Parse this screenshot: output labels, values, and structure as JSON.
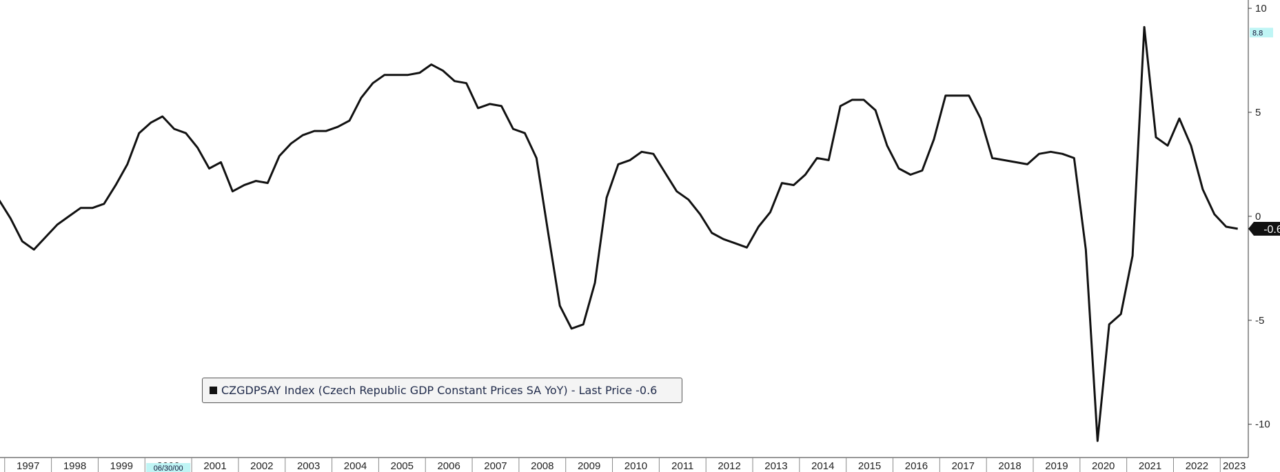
{
  "chart_data": {
    "type": "line",
    "title": "",
    "xlabel": "",
    "ylabel": "",
    "ylim": [
      -11.6,
      10.4
    ],
    "yticks": [
      10,
      5,
      0,
      -5,
      -10
    ],
    "ytick_labels": [
      "10",
      "5",
      "0",
      "-5",
      "-10"
    ],
    "xtick_labels": [
      "1997",
      "1998",
      "1999",
      "2000",
      "2001",
      "2002",
      "2003",
      "2004",
      "2005",
      "2006",
      "2007",
      "2008",
      "2009",
      "2010",
      "2011",
      "2012",
      "2013",
      "2014",
      "2015",
      "2016",
      "2017",
      "2018",
      "2019",
      "2020",
      "2021",
      "2022",
      "2023"
    ],
    "xlim": [
      1996.9,
      2023.6
    ],
    "grid": false,
    "series": [
      {
        "name": "CZGDPSAY Index (Czech Republic GDP Constant Prices SA YoY) - Last Price -0.6",
        "color": "#111111",
        "x": [
          1996.875,
          1997.125,
          1997.375,
          1997.625,
          1997.875,
          1998.125,
          1998.375,
          1998.625,
          1998.875,
          1999.125,
          1999.375,
          1999.625,
          1999.875,
          2000.125,
          2000.375,
          2000.625,
          2000.875,
          2001.125,
          2001.375,
          2001.625,
          2001.875,
          2002.125,
          2002.375,
          2002.625,
          2002.875,
          2003.125,
          2003.375,
          2003.625,
          2003.875,
          2004.125,
          2004.375,
          2004.625,
          2004.875,
          2005.125,
          2005.375,
          2005.625,
          2005.875,
          2006.125,
          2006.375,
          2006.625,
          2006.875,
          2007.125,
          2007.375,
          2007.625,
          2007.875,
          2008.125,
          2008.375,
          2008.625,
          2008.875,
          2009.125,
          2009.375,
          2009.625,
          2009.875,
          2010.125,
          2010.375,
          2010.625,
          2010.875,
          2011.125,
          2011.375,
          2011.625,
          2011.875,
          2012.125,
          2012.375,
          2012.625,
          2012.875,
          2013.125,
          2013.375,
          2013.625,
          2013.875,
          2014.125,
          2014.375,
          2014.625,
          2014.875,
          2015.125,
          2015.375,
          2015.625,
          2015.875,
          2016.125,
          2016.375,
          2016.625,
          2016.875,
          2017.125,
          2017.375,
          2017.625,
          2017.875,
          2018.125,
          2018.375,
          2018.625,
          2018.875,
          2019.125,
          2019.375,
          2019.625,
          2019.875,
          2020.125,
          2020.375,
          2020.625,
          2020.875,
          2021.125,
          2021.375,
          2021.625,
          2021.875,
          2022.125,
          2022.375,
          2022.625,
          2022.875,
          2023.125,
          2023.375
        ],
        "values": [
          0.8,
          -0.1,
          -1.2,
          -1.6,
          -1.0,
          -0.4,
          0.0,
          0.4,
          0.4,
          0.6,
          1.5,
          2.5,
          4.0,
          4.5,
          4.8,
          4.2,
          4.0,
          3.3,
          2.3,
          2.6,
          1.2,
          1.5,
          1.7,
          1.6,
          2.9,
          3.5,
          3.9,
          4.1,
          4.1,
          4.3,
          4.6,
          5.7,
          6.4,
          6.8,
          6.8,
          6.8,
          6.9,
          7.3,
          7.0,
          6.5,
          6.4,
          5.2,
          5.4,
          5.3,
          4.2,
          4.0,
          2.8,
          -0.8,
          -4.3,
          -5.4,
          -5.2,
          -3.2,
          0.9,
          2.5,
          2.7,
          3.1,
          3.0,
          2.1,
          1.2,
          0.8,
          0.1,
          -0.8,
          -1.1,
          -1.3,
          -1.5,
          -0.5,
          0.2,
          1.6,
          1.5,
          2.0,
          2.8,
          2.7,
          5.3,
          5.6,
          5.6,
          5.1,
          3.4,
          2.3,
          2.0,
          2.2,
          3.7,
          5.8,
          5.8,
          5.8,
          4.7,
          2.8,
          2.7,
          2.6,
          2.5,
          3.0,
          3.1,
          3.0,
          2.8,
          -1.6,
          -10.8,
          -5.2,
          -4.7,
          -1.9,
          9.1,
          3.8,
          3.4,
          4.7,
          3.4,
          1.3,
          0.1,
          -0.5,
          -0.6
        ]
      }
    ],
    "last_value_label": "-0.6",
    "highlight_value_label": "8.8",
    "highlight_value": 8.8,
    "cursor_date_label": "06/30/00",
    "legend_position": "bottom-left"
  }
}
